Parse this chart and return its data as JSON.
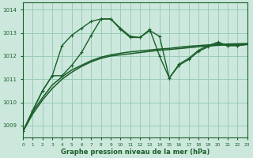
{
  "xlabel": "Graphe pression niveau de la mer (hPa)",
  "bg_color": "#cce8dc",
  "grid_color": "#99ccbb",
  "line_color": "#1a5e2a",
  "xlim": [
    0,
    23
  ],
  "ylim": [
    1008.5,
    1014.3
  ],
  "yticks": [
    1009,
    1010,
    1011,
    1012,
    1013,
    1014
  ],
  "xticks": [
    0,
    1,
    2,
    3,
    4,
    5,
    6,
    7,
    8,
    9,
    10,
    11,
    12,
    13,
    14,
    15,
    16,
    17,
    18,
    19,
    20,
    21,
    22,
    23
  ],
  "series_trend": [
    1008.75,
    1009.5,
    1010.1,
    1010.6,
    1011.0,
    1011.3,
    1011.55,
    1011.75,
    1011.9,
    1012.0,
    1012.05,
    1012.1,
    1012.15,
    1012.2,
    1012.25,
    1012.28,
    1012.32,
    1012.36,
    1012.4,
    1012.43,
    1012.46,
    1012.48,
    1012.49,
    1012.5
  ],
  "series_trend2": [
    1008.75,
    1009.6,
    1010.2,
    1010.75,
    1011.1,
    1011.4,
    1011.6,
    1011.8,
    1011.95,
    1012.05,
    1012.12,
    1012.18,
    1012.22,
    1012.26,
    1012.3,
    1012.33,
    1012.38,
    1012.42,
    1012.45,
    1012.48,
    1012.5,
    1012.52,
    1012.53,
    1012.54
  ],
  "series_wavy": [
    1008.75,
    1009.65,
    1010.5,
    1011.15,
    1012.45,
    1012.9,
    1013.2,
    1013.5,
    1013.6,
    1013.6,
    1013.2,
    1012.85,
    1012.8,
    1013.15,
    1012.0,
    1011.05,
    1011.65,
    1011.9,
    1012.25,
    1012.45,
    1012.6,
    1012.45,
    1012.45,
    1012.5
  ],
  "series_wavy2": [
    1008.75,
    1009.65,
    1010.5,
    1011.15,
    1011.15,
    1011.6,
    1012.15,
    1012.9,
    1013.6,
    1013.6,
    1013.15,
    1012.8,
    1012.8,
    1013.1,
    1012.85,
    1011.05,
    1011.6,
    1011.85,
    1012.2,
    1012.4,
    1012.55,
    1012.45,
    1012.45,
    1012.5
  ]
}
